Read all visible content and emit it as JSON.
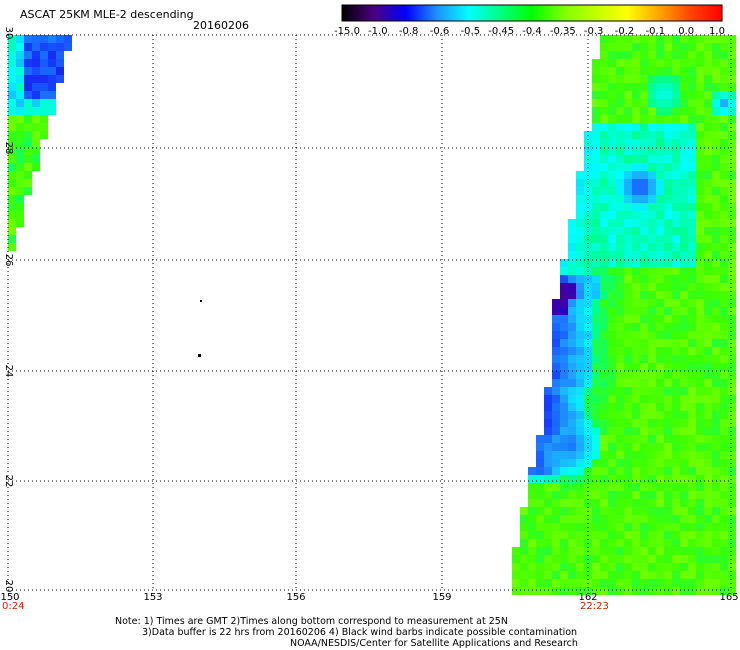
{
  "header": {
    "title": "ASCAT 25KM MLE-2 descending",
    "date": "20160206"
  },
  "colorbar": {
    "labels": [
      "-15.0",
      "-1.0",
      "-0.8",
      "-0.6",
      "-0.5",
      "-0.45",
      "-0.4",
      "-0.35",
      "-0.3",
      "-0.2",
      "-0.1",
      "0.0",
      "1.0"
    ],
    "colors": [
      "#000000",
      "#4b0082",
      "#0000ff",
      "#1e90ff",
      "#00ffff",
      "#00ff80",
      "#00ff00",
      "#7fff00",
      "#c0ff00",
      "#ffff00",
      "#ffa500",
      "#ff4500",
      "#ff0000"
    ]
  },
  "map": {
    "lat_range": [
      20,
      30
    ],
    "lon_range": [
      150,
      165
    ],
    "lat_ticks": [
      "20",
      "22",
      "24",
      "26",
      "28",
      "30"
    ],
    "lon_ticks": [
      "150",
      "153",
      "156",
      "159",
      "162",
      "165"
    ],
    "times": {
      "left": "0:24",
      "right": "22:23"
    },
    "grid": true
  },
  "footer": {
    "line1": "Note: 1) Times are GMT 2)Times along bottom correspond to measurement at 25N",
    "line2": "3)Data buffer is 22 hrs from 20160206 4) Black wind barbs indicate possible contamination",
    "line3": "NOAA/NESDIS/Center for Satellite Applications and Research"
  }
}
